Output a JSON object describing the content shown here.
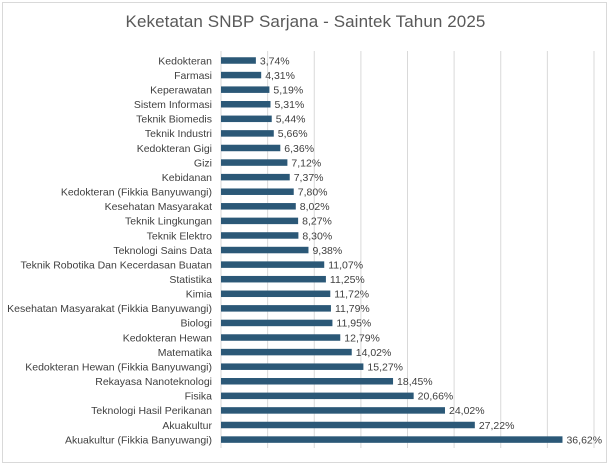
{
  "title": "Keketatan SNBP Sarjana - Saintek Tahun 2025",
  "colors": {
    "bar": "#2b5877",
    "grid": "#d9d9d9",
    "text": "#404040"
  },
  "chart_data": {
    "type": "bar",
    "orientation": "horizontal",
    "title": "Keketatan SNBP Sarjana - Saintek Tahun 2025",
    "xlabel": "",
    "ylabel": "",
    "xlim": [
      0,
      40
    ],
    "grid": true,
    "categories": [
      "Kedokteran",
      "Farmasi",
      "Keperawatan",
      "Sistem Informasi",
      "Teknik Biomedis",
      "Teknik Industri",
      "Kedokteran Gigi",
      "Gizi",
      "Kebidanan",
      "Kedokteran (Fikkia Banyuwangi)",
      "Kesehatan Masyarakat",
      "Teknik Lingkungan",
      "Teknik Elektro",
      "Teknologi Sains Data",
      "Teknik Robotika Dan Kecerdasan Buatan",
      "Statistika",
      "Kimia",
      "Kesehatan Masyarakat (Fikkia Banyuwangi)",
      "Biologi",
      "Kedokteran Hewan",
      "Matematika",
      "Kedokteran Hewan (Fikkia Banyuwangi)",
      "Rekayasa Nanoteknologi",
      "Fisika",
      "Teknologi Hasil Perikanan",
      "Akuakultur",
      "Akuakultur (Fikkia Banyuwangi)"
    ],
    "values": [
      3.74,
      4.31,
      5.19,
      5.31,
      5.44,
      5.66,
      6.36,
      7.12,
      7.37,
      7.8,
      8.02,
      8.27,
      8.3,
      9.38,
      11.07,
      11.25,
      11.72,
      11.79,
      11.95,
      12.79,
      14.02,
      15.27,
      18.45,
      20.66,
      24.02,
      27.22,
      36.62
    ],
    "labels": [
      "3,74%",
      "4,31%",
      "5,19%",
      "5,31%",
      "5,44%",
      "5,66%",
      "6,36%",
      "7,12%",
      "7,37%",
      "7,80%",
      "8,02%",
      "8,27%",
      "8,30%",
      "9,38%",
      "11,07%",
      "11,25%",
      "11,72%",
      "11,79%",
      "11,95%",
      "12,79%",
      "14,02%",
      "15,27%",
      "18,45%",
      "20,66%",
      "24,02%",
      "27,22%",
      "36,62%"
    ]
  }
}
